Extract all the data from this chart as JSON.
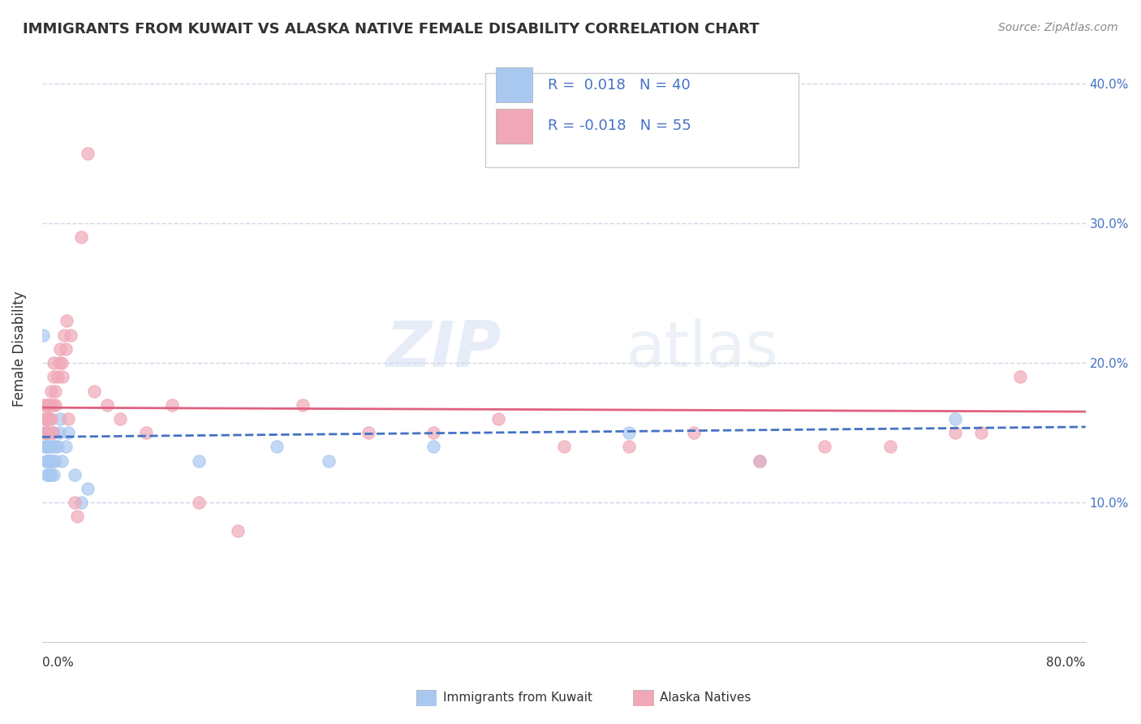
{
  "title": "IMMIGRANTS FROM KUWAIT VS ALASKA NATIVE FEMALE DISABILITY CORRELATION CHART",
  "source": "Source: ZipAtlas.com",
  "ylabel": "Female Disability",
  "xlim": [
    0.0,
    0.8
  ],
  "ylim": [
    0.0,
    0.42
  ],
  "yticks": [
    0.1,
    0.2,
    0.3,
    0.4
  ],
  "ytick_labels": [
    "10.0%",
    "20.0%",
    "30.0%",
    "40.0%"
  ],
  "legend_label1": "Immigrants from Kuwait",
  "legend_label2": "Alaska Natives",
  "blue_color": "#a8c8f0",
  "pink_color": "#f0a8b8",
  "line_blue": "#4472c4",
  "line_pink": "#e06080",
  "grid_color": "#d0d8e8",
  "background": "#ffffff",
  "blue_scatter_x": [
    0.001,
    0.002,
    0.002,
    0.003,
    0.003,
    0.003,
    0.003,
    0.004,
    0.004,
    0.004,
    0.004,
    0.005,
    0.005,
    0.005,
    0.006,
    0.006,
    0.007,
    0.007,
    0.008,
    0.008,
    0.009,
    0.009,
    0.01,
    0.01,
    0.012,
    0.013,
    0.014,
    0.015,
    0.018,
    0.02,
    0.025,
    0.03,
    0.035,
    0.12,
    0.18,
    0.22,
    0.3,
    0.45,
    0.55,
    0.7
  ],
  "blue_scatter_y": [
    0.22,
    0.14,
    0.15,
    0.13,
    0.14,
    0.15,
    0.16,
    0.12,
    0.13,
    0.14,
    0.15,
    0.12,
    0.13,
    0.14,
    0.13,
    0.14,
    0.12,
    0.13,
    0.13,
    0.14,
    0.12,
    0.15,
    0.13,
    0.14,
    0.14,
    0.15,
    0.16,
    0.13,
    0.14,
    0.15,
    0.12,
    0.1,
    0.11,
    0.13,
    0.14,
    0.13,
    0.14,
    0.15,
    0.13,
    0.16
  ],
  "pink_scatter_x": [
    0.001,
    0.002,
    0.002,
    0.003,
    0.003,
    0.004,
    0.004,
    0.004,
    0.005,
    0.005,
    0.005,
    0.006,
    0.006,
    0.007,
    0.007,
    0.008,
    0.008,
    0.009,
    0.009,
    0.01,
    0.01,
    0.012,
    0.013,
    0.014,
    0.015,
    0.016,
    0.017,
    0.018,
    0.019,
    0.02,
    0.022,
    0.025,
    0.027,
    0.03,
    0.035,
    0.04,
    0.05,
    0.06,
    0.08,
    0.1,
    0.12,
    0.15,
    0.2,
    0.25,
    0.3,
    0.35,
    0.4,
    0.45,
    0.5,
    0.55,
    0.6,
    0.65,
    0.7,
    0.72,
    0.75
  ],
  "pink_scatter_y": [
    0.17,
    0.15,
    0.16,
    0.16,
    0.17,
    0.15,
    0.16,
    0.17,
    0.15,
    0.16,
    0.17,
    0.16,
    0.17,
    0.16,
    0.18,
    0.15,
    0.17,
    0.19,
    0.2,
    0.17,
    0.18,
    0.19,
    0.2,
    0.21,
    0.2,
    0.19,
    0.22,
    0.21,
    0.23,
    0.16,
    0.22,
    0.1,
    0.09,
    0.29,
    0.35,
    0.18,
    0.17,
    0.16,
    0.15,
    0.17,
    0.1,
    0.08,
    0.17,
    0.15,
    0.15,
    0.16,
    0.14,
    0.14,
    0.15,
    0.13,
    0.14,
    0.14,
    0.15,
    0.15,
    0.19
  ],
  "r1": 0.018,
  "n1": 40,
  "r2": -0.018,
  "n2": 55,
  "blue_trend_intercept": 0.147,
  "blue_trend_slope": 0.009,
  "pink_trend_intercept": 0.168,
  "pink_trend_slope": -0.0036
}
